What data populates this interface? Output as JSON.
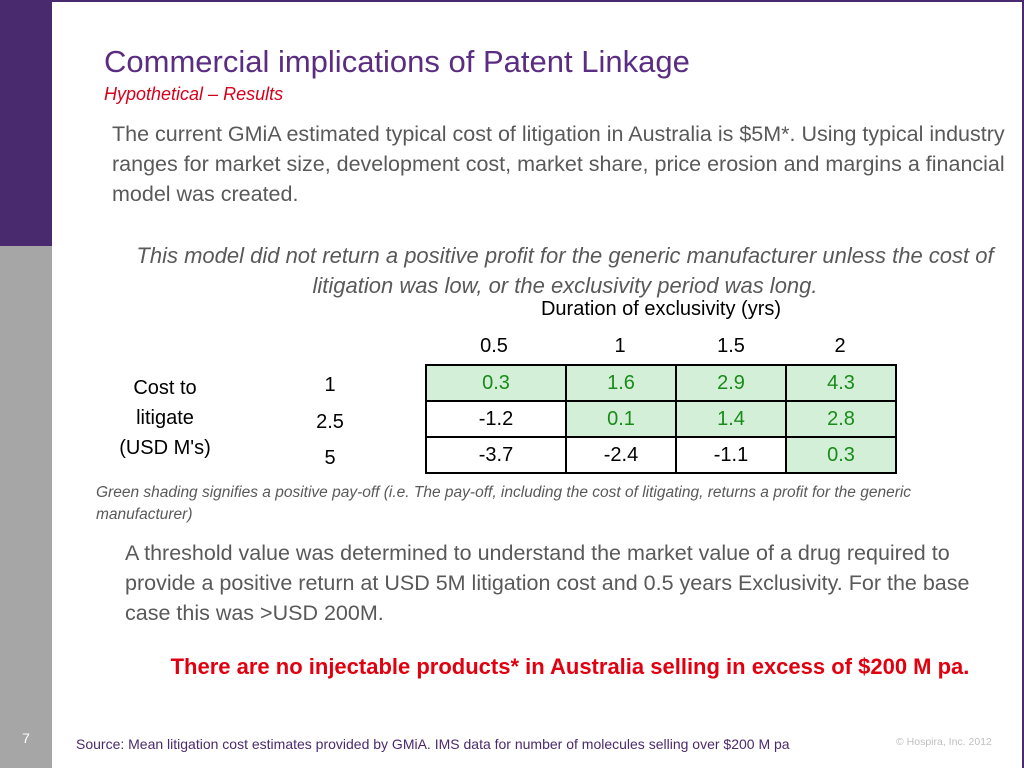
{
  "slide": {
    "title": "Commercial implications of Patent Linkage",
    "subtitle": "Hypothetical – Results",
    "para1": "The current GMiA estimated typical cost of litigation in Australia is $5M*. Using typical industry ranges for market size, development cost, market share, price erosion and margins a financial model was created.",
    "para2": "This model did not return a positive profit for the generic manufacturer unless the cost of litigation was low, or the exclusivity period was long.",
    "note": "Green shading signifies a positive pay-off (i.e. The pay-off, including the cost of litigating, returns a profit for the generic manufacturer)",
    "para3": "A threshold value was determined to understand the market value of a drug required to provide a positive return at USD 5M litigation cost and 0.5 years Exclusivity. For the base case this was >USD 200M.",
    "highlight": "There are no injectable products* in Australia selling in excess of $200 M pa.",
    "page_number": "7",
    "source": "Source: Mean litigation cost estimates provided by GMiA. IMS data for number of molecules selling over $200 M pa",
    "copyright": "© Hospira, Inc. 2012"
  },
  "table": {
    "duration_header": "Duration of exclusivity (yrs)",
    "cost_label": [
      "Cost to",
      "litigate",
      "(USD M's)"
    ],
    "columns": [
      "0.5",
      "1",
      "1.5",
      "2"
    ],
    "rows": [
      {
        "label": "1",
        "values": [
          "0.3",
          "1.6",
          "2.9",
          "4.3"
        ],
        "positive": [
          true,
          true,
          true,
          true
        ]
      },
      {
        "label": "2.5",
        "values": [
          "-1.2",
          "0.1",
          "1.4",
          "2.8"
        ],
        "positive": [
          false,
          true,
          true,
          true
        ]
      },
      {
        "label": "5",
        "values": [
          "-3.7",
          "-2.4",
          "-1.1",
          "0.3"
        ],
        "positive": [
          false,
          false,
          false,
          true
        ]
      }
    ]
  },
  "colors": {
    "brand_purple": "#4a2a6e",
    "title_purple": "#5a2d82",
    "accent_red": "#d6001c",
    "positive_fill": "#d4efd7",
    "positive_text": "#1a8a1a"
  }
}
